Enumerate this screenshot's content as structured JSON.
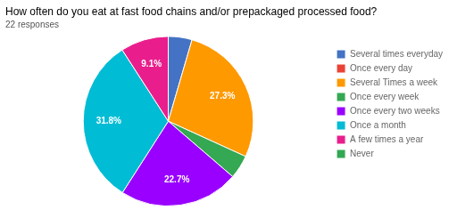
{
  "chart_data": {
    "type": "pie",
    "title": "How often do you eat at fast food chains and/or prepackaged processed food?",
    "subtitle": "22 responses",
    "categories": [
      "Several times everyday",
      "Once every day",
      "Several Times a week",
      "Once every week",
      "Once every two weeks",
      "Once a month",
      "A few times a year",
      "Never"
    ],
    "values": [
      4.5,
      0.0,
      27.3,
      4.5,
      22.7,
      31.8,
      9.1,
      0.0
    ],
    "value_labels": [
      null,
      null,
      "27.3%",
      null,
      "22.7%",
      "31.8%",
      "9.1%",
      null
    ],
    "colors": [
      "#4472c4",
      "#ea4335",
      "#ff9900",
      "#34a853",
      "#9900ff",
      "#00bcd4",
      "#e91e8c",
      "#33a852"
    ],
    "legend": "right"
  }
}
